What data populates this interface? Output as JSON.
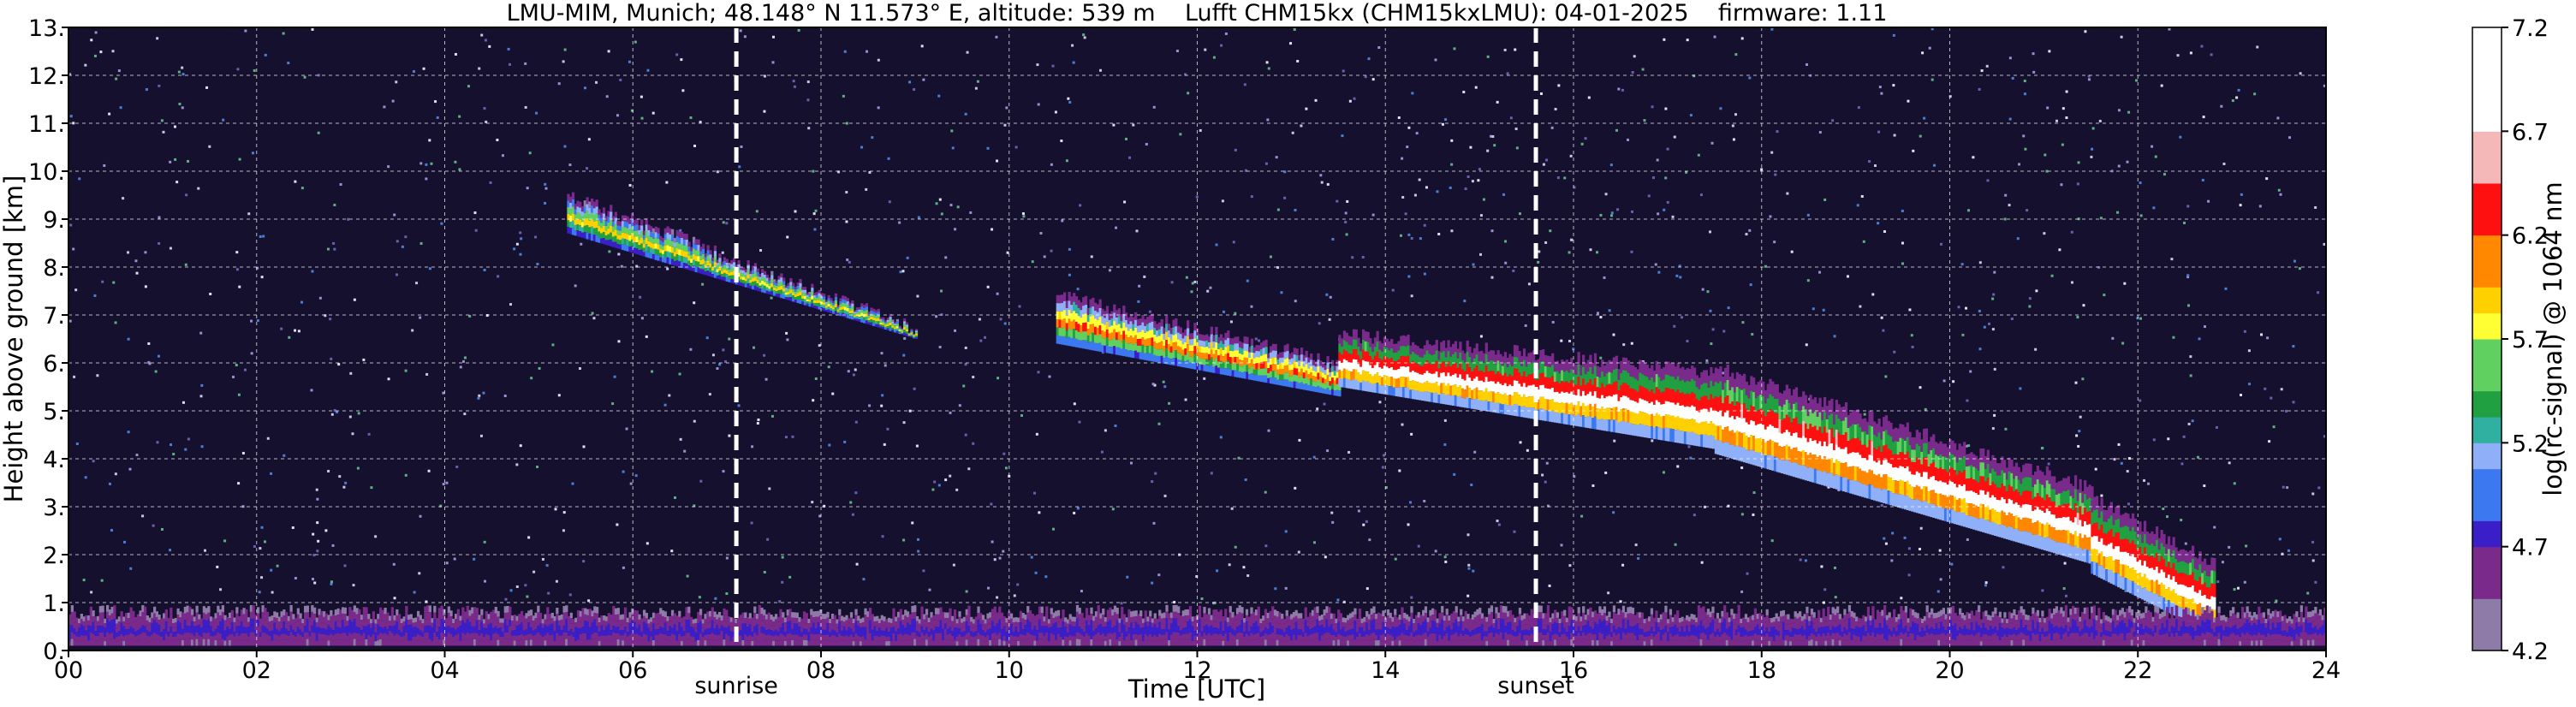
{
  "chart_data": {
    "type": "heatmap",
    "title": "LMU-MIM, Munich; 48.148° N 11.573° E, altitude: 539 m    Lufft CHM15kx (CHM15kxLMU): 04-01-2025    firmware: 1.11",
    "xlabel": "Time [UTC]",
    "ylabel": "Height above ground [km]",
    "x_range": [
      0,
      24
    ],
    "y_range": [
      0,
      13
    ],
    "x_ticks": [
      "00",
      "02",
      "04",
      "06",
      "08",
      "10",
      "12",
      "14",
      "16",
      "18",
      "20",
      "22",
      "24"
    ],
    "y_ticks": [
      "0.",
      "1.",
      "2.",
      "3.",
      "4.",
      "5.",
      "6.",
      "7.",
      "8.",
      "9.",
      "10.",
      "11.",
      "12.",
      "13."
    ],
    "grid": true,
    "colorbar": {
      "label": "log(rc-signal) @ 1064 nm",
      "range": [
        4.2,
        7.2
      ],
      "ticks": [
        "4.2",
        "4.7",
        "5.2",
        "5.7",
        "6.2",
        "6.7",
        "7.2"
      ]
    },
    "markers": [
      {
        "label": "sunrise",
        "x": 7.1
      },
      {
        "label": "sunset",
        "x": 15.6
      }
    ],
    "features": [
      {
        "name": "cloud",
        "x": [
          5.3,
          9.0
        ],
        "y_top": [
          9.5,
          6.7
        ],
        "y_bottom": [
          8.7,
          6.5
        ],
        "peak": 6.0
      },
      {
        "name": "cloud",
        "x": [
          10.5,
          13.5
        ],
        "y_top": [
          7.4,
          6.0
        ],
        "y_bottom": [
          6.4,
          5.3
        ],
        "peak": 6.3
      },
      {
        "name": "cloud",
        "x": [
          13.5,
          17.5
        ],
        "y_top": [
          6.6,
          5.8
        ],
        "y_bottom": [
          5.5,
          4.2
        ],
        "peak": 7.0
      },
      {
        "name": "cloud",
        "x": [
          17.5,
          21.5
        ],
        "y_top": [
          5.9,
          3.4
        ],
        "y_bottom": [
          4.1,
          1.8
        ],
        "peak": 7.1
      },
      {
        "name": "cloud",
        "x": [
          21.5,
          22.8
        ],
        "y_top": [
          3.2,
          1.8
        ],
        "y_bottom": [
          1.6,
          0.3
        ],
        "peak": 7.0
      },
      {
        "name": "boundary-layer",
        "x": [
          0,
          24
        ],
        "y_top": [
          0.8,
          0.8
        ],
        "y_bottom": [
          0.1,
          0.1
        ],
        "peak": 4.8
      }
    ]
  }
}
